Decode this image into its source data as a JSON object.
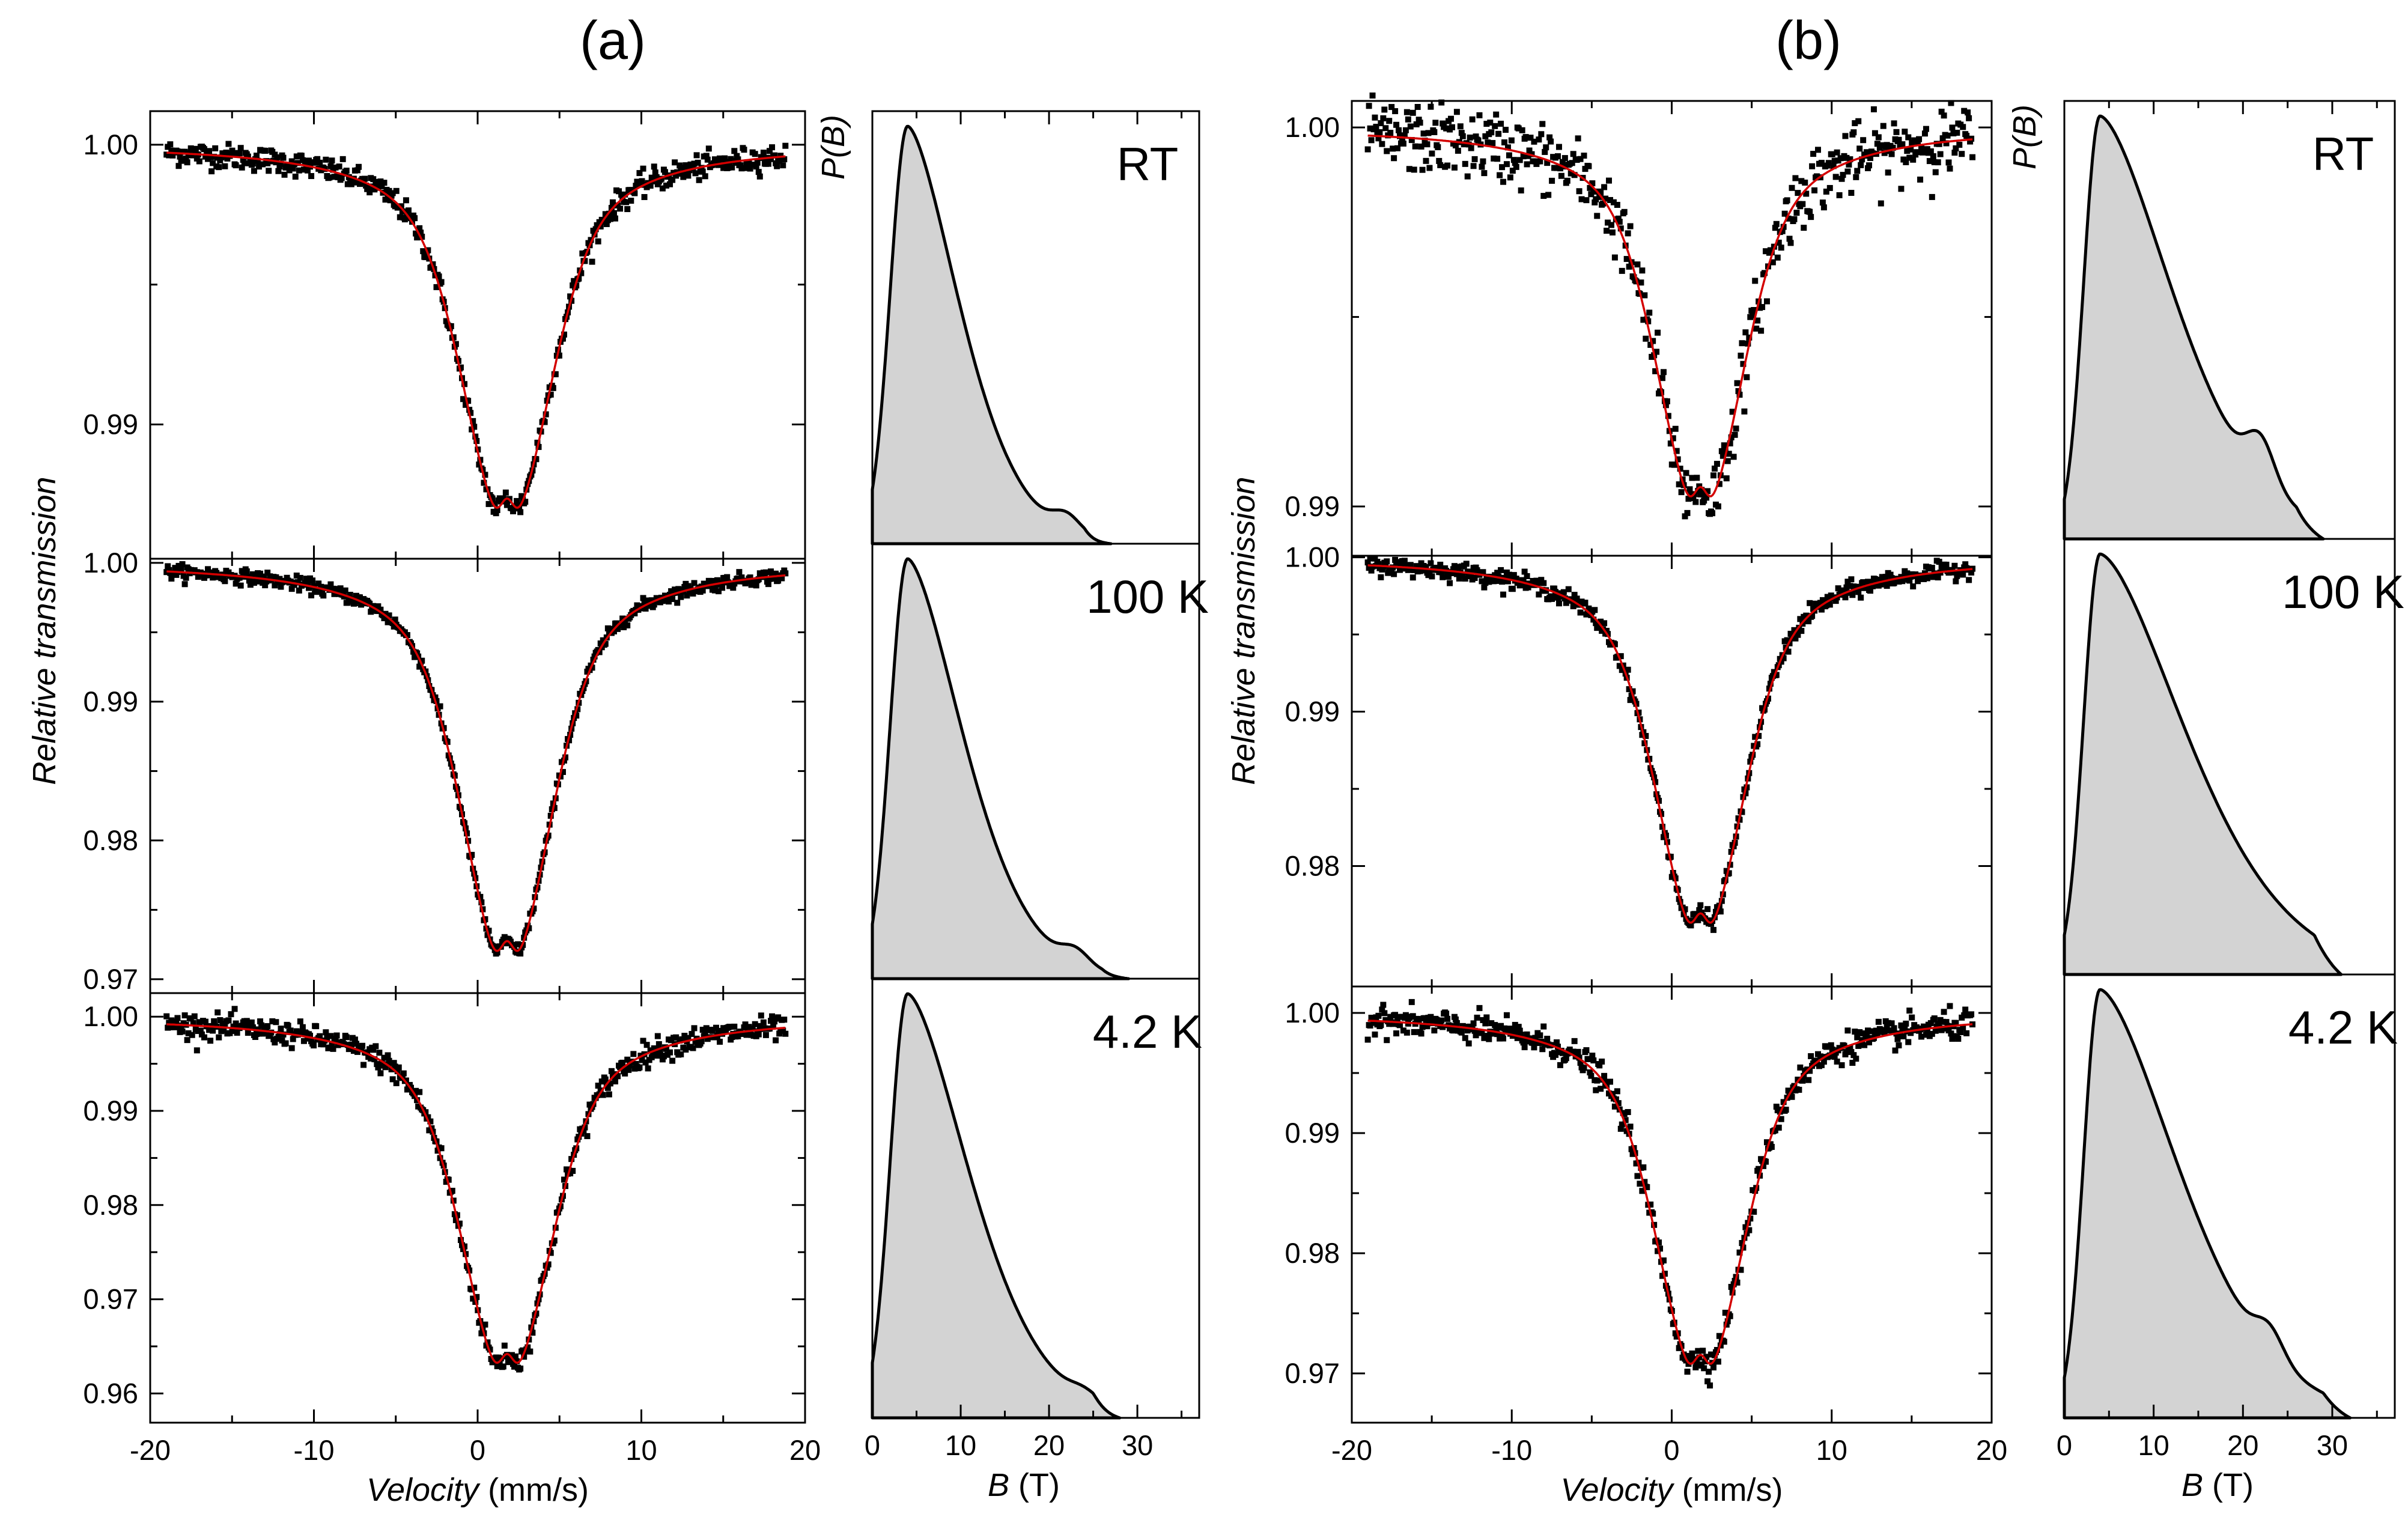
{
  "chart_data": [
    {
      "id": "a",
      "type": "scatter",
      "title": "(a)",
      "xlabel_italic": "Velocity",
      "xlabel_unit": " (mm/s)",
      "ylabel": "Relative transmission",
      "xlim": [
        -20,
        20
      ],
      "xticks": [
        -20,
        -10,
        0,
        10,
        20
      ],
      "subplots": [
        {
          "temp": "RT",
          "ylim": [
            0.9852,
            1.0012
          ],
          "yticks": [
            {
              "v": 1.0,
              "t": "1.00"
            },
            {
              "v": 0.99,
              "t": "0.99"
            }
          ],
          "depth": 0.0136,
          "noise": 0.00022
        },
        {
          "temp": "100 K",
          "ylim": [
            0.969,
            1.0003
          ],
          "yticks": [
            {
              "v": 1.0,
              "t": "1.00"
            },
            {
              "v": 0.99,
              "t": "0.99"
            },
            {
              "v": 0.98,
              "t": "0.98"
            },
            {
              "v": 0.97,
              "t": "0.97"
            }
          ],
          "depth": 0.0293,
          "noise": 0.00025
        },
        {
          "temp": "4.2 K",
          "ylim": [
            0.9569,
            1.0025
          ],
          "yticks": [
            {
              "v": 1.0,
              "t": "1.00"
            },
            {
              "v": 0.99,
              "t": "0.99"
            },
            {
              "v": 0.98,
              "t": "0.98"
            },
            {
              "v": 0.97,
              "t": "0.97"
            },
            {
              "v": 0.96,
              "t": "0.96"
            }
          ],
          "depth": 0.0385,
          "noise": 0.00065
        }
      ],
      "pb_xlabel_italic": "B",
      "pb_xlabel_unit": "  (T)",
      "pb_ylabel": "P(B)",
      "pb_xlim": [
        0,
        37
      ],
      "pb_xticks": [
        0,
        10,
        20,
        30
      ],
      "pb_dist": [
        {
          "peak": 4,
          "w1": 2.8,
          "w2": 8.5,
          "bump": 0.04,
          "bumpAt": 22,
          "end": 27
        },
        {
          "peak": 4,
          "w1": 2.8,
          "w2": 9.2,
          "bump": 0.035,
          "bumpAt": 23,
          "end": 29
        },
        {
          "peak": 4,
          "w1": 2.8,
          "w2": 10.2,
          "bump": 0.02,
          "bumpAt": 24,
          "end": 28
        }
      ]
    },
    {
      "id": "b",
      "type": "scatter",
      "title": "(b)",
      "xlabel_italic": "Velocity",
      "xlabel_unit": " (mm/s)",
      "ylabel": "Relative transmission",
      "xlim": [
        -20,
        20
      ],
      "xticks": [
        -20,
        -10,
        0,
        10,
        20
      ],
      "subplots": [
        {
          "temp": "RT",
          "ylim": [
            0.9887,
            1.0007
          ],
          "yticks": [
            {
              "v": 1.0,
              "t": "1.00"
            },
            {
              "v": 0.99,
              "t": "0.99"
            }
          ],
          "depth": 0.0102,
          "noise": 0.00045
        },
        {
          "temp": "100 K",
          "ylim": [
            0.9722,
            1.0001
          ],
          "yticks": [
            {
              "v": 1.0,
              "t": "1.00"
            },
            {
              "v": 0.99,
              "t": "0.99"
            },
            {
              "v": 0.98,
              "t": "0.98"
            }
          ],
          "depth": 0.0248,
          "noise": 0.00028
        },
        {
          "temp": "4.2 K",
          "ylim": [
            0.9659,
            1.0022
          ],
          "yticks": [
            {
              "v": 1.0,
              "t": "1.00"
            },
            {
              "v": 0.99,
              "t": "0.99"
            },
            {
              "v": 0.98,
              "t": "0.98"
            },
            {
              "v": 0.97,
              "t": "0.97"
            }
          ],
          "depth": 0.0306,
          "noise": 0.0006
        }
      ],
      "pb_xlabel_italic": "B",
      "pb_xlabel_unit": "  (T)",
      "pb_ylabel": "P(B)",
      "pb_xlim": [
        0,
        37
      ],
      "pb_xticks": [
        0,
        10,
        20,
        30
      ],
      "pb_dist": [
        {
          "peak": 4,
          "w1": 2.6,
          "w2": 12,
          "bump": 0.1,
          "bumpAt": 22,
          "end": 29
        },
        {
          "peak": 4,
          "w1": 2.6,
          "w2": 14,
          "bump": 0.0,
          "bumpAt": 25,
          "end": 31
        },
        {
          "peak": 4,
          "w1": 2.6,
          "w2": 13,
          "bump": 0.06,
          "bumpAt": 23,
          "end": 32
        }
      ]
    }
  ]
}
